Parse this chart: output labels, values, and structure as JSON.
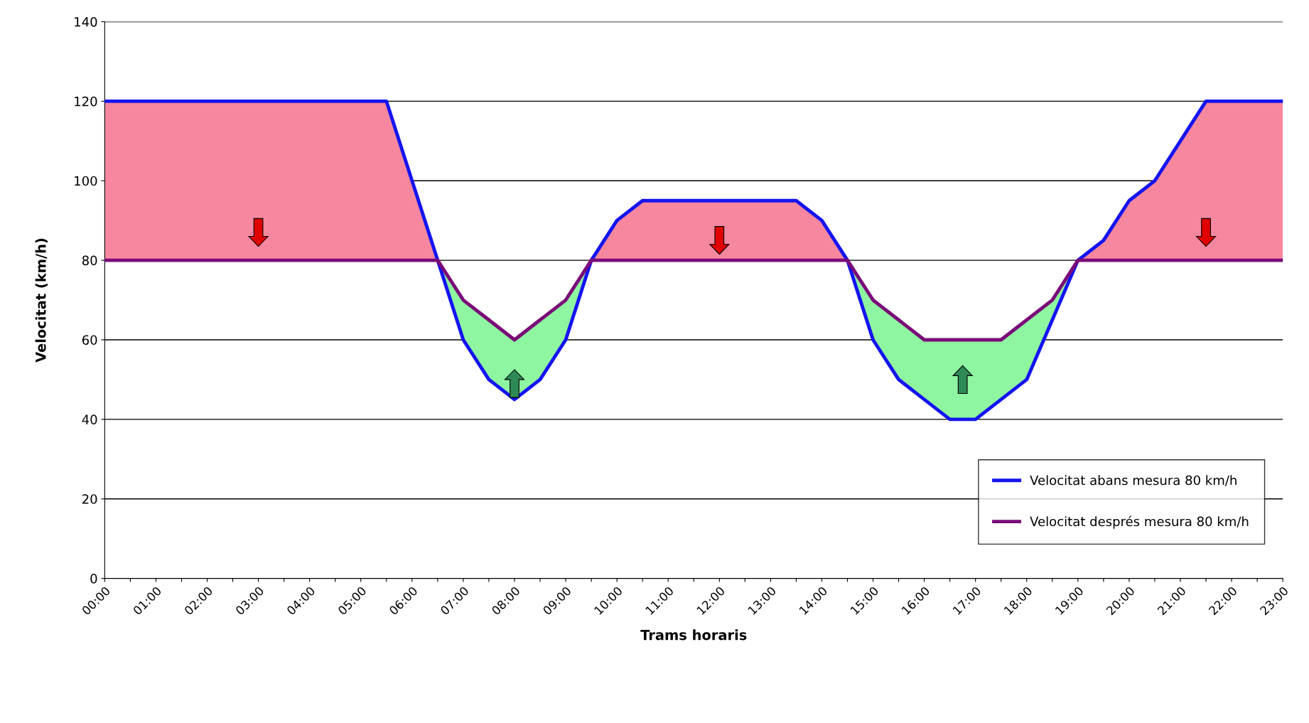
{
  "chart_data": {
    "type": "line",
    "xlabel": "Trams horaris",
    "ylabel": "Velocitat (km/h)",
    "categories": [
      "00:00",
      null,
      "01:00",
      null,
      "02:00",
      null,
      "03:00",
      null,
      "04:00",
      null,
      "05:00",
      null,
      "06:00",
      null,
      "07:00",
      null,
      "08:00",
      null,
      "09:00",
      null,
      "10:00",
      null,
      "11:00",
      null,
      "12:00",
      null,
      "13:00",
      null,
      "14:00",
      null,
      "15:00",
      null,
      "16:00",
      null,
      "17:00",
      null,
      "18:00",
      null,
      "19:00",
      null,
      "20:00",
      null,
      "21:00",
      null,
      "22:00",
      null,
      "23:00"
    ],
    "series": [
      {
        "type": "area",
        "color": "#f7879f",
        "values": [
          120,
          120,
          120,
          120,
          120,
          120,
          120,
          120,
          120,
          120,
          120,
          120,
          100,
          80,
          null,
          null,
          null,
          null,
          null,
          80,
          90,
          95,
          95,
          95,
          95,
          95,
          95,
          95,
          90,
          80,
          null,
          null,
          null,
          null,
          null,
          null,
          null,
          null,
          80,
          85,
          95,
          100,
          110,
          120,
          120,
          120,
          120
        ]
      },
      {
        "type": "area",
        "color": "#8ef5a0",
        "values": [
          null,
          null,
          null,
          null,
          null,
          null,
          null,
          null,
          null,
          null,
          null,
          null,
          null,
          80,
          70,
          65,
          60,
          65,
          70,
          80,
          null,
          null,
          null,
          null,
          null,
          null,
          null,
          null,
          null,
          80,
          70,
          65,
          60,
          60,
          60,
          60,
          65,
          70,
          80,
          null,
          null,
          null,
          null,
          null,
          null,
          null,
          null
        ]
      },
      {
        "name": "Velocitat abans mesura 80 km/h",
        "color": "#1414f0",
        "values": [
          120,
          120,
          120,
          120,
          120,
          120,
          120,
          120,
          120,
          120,
          120,
          120,
          100,
          80,
          60,
          50,
          45,
          50,
          60,
          80,
          90,
          95,
          95,
          95,
          95,
          95,
          95,
          95,
          90,
          80,
          60,
          50,
          45,
          40,
          40,
          45,
          50,
          65,
          80,
          85,
          95,
          100,
          110,
          120,
          120,
          120,
          120
        ]
      },
      {
        "name": "Velocitat després mesura 80 km/h",
        "color": "#7a0a78",
        "values": [
          80,
          80,
          80,
          80,
          80,
          80,
          80,
          80,
          80,
          80,
          80,
          80,
          80,
          80,
          70,
          65,
          60,
          65,
          70,
          80,
          80,
          80,
          80,
          80,
          80,
          80,
          80,
          80,
          80,
          80,
          70,
          65,
          60,
          60,
          60,
          60,
          65,
          70,
          80,
          80,
          80,
          80,
          80,
          80,
          80,
          80,
          80
        ]
      }
    ],
    "ylim": [
      0,
      140
    ],
    "yticks": [
      0,
      20,
      40,
      60,
      80,
      100,
      120,
      140
    ],
    "grid": "y",
    "legend": "lower right",
    "marker": "none",
    "line_style": "solid"
  }
}
